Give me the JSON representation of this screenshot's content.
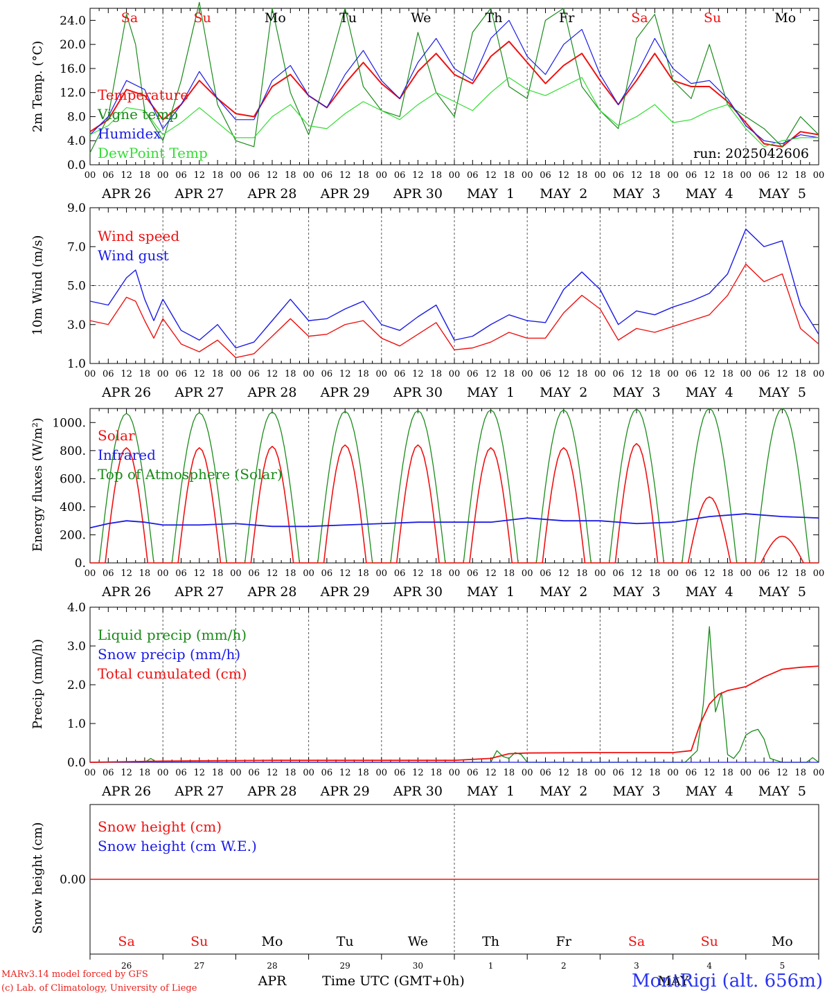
{
  "run_label": "run: 2025042606",
  "station": "MontRigi (alt. 656m)",
  "footer": {
    "line1": "MARv3.14 model forced by GFS",
    "line2": "(c) Lab. of Climatology, University of Liege",
    "time_axis_label": "Time UTC (GMT+0h)",
    "month_label": "APR",
    "month_label_2": "MAY"
  },
  "colors": {
    "red": "#ee1111",
    "dark_green": "#1a8a1a",
    "blue": "#1a1ae6",
    "light_green": "#33dd33",
    "grid": "#777777"
  },
  "days": [
    "Sa",
    "Su",
    "Mo",
    "Tu",
    "We",
    "Th",
    "Fr",
    "Sa",
    "Su",
    "Mo"
  ],
  "day_colors": [
    "red",
    "red",
    "black",
    "black",
    "black",
    "black",
    "black",
    "red",
    "red",
    "black"
  ],
  "date_labels": [
    "APR 26",
    "APR 27",
    "APR 28",
    "APR 29",
    "APR 30",
    "MAY  1",
    "MAY  2",
    "MAY  3",
    "MAY  4",
    "MAY  5"
  ],
  "hour_labels": [
    "00",
    "06",
    "12",
    "18"
  ],
  "bottom_day_numbers": [
    "26",
    "27",
    "28",
    "29",
    "30",
    "1",
    "2",
    "3",
    "4",
    "5"
  ],
  "chart_data": [
    {
      "type": "line",
      "ylabel": "2m Temp. (°C)",
      "ylim": [
        0,
        26
      ],
      "yticks": [
        "0.0",
        "4.0",
        "8.0",
        "12.0",
        "16.0",
        "20.0",
        "24.0"
      ],
      "x_unit": "hours since APR 26 00 UTC",
      "series": [
        {
          "name": "Temperature",
          "color": "red",
          "x": [
            0,
            6,
            12,
            18,
            24,
            30,
            36,
            42,
            48,
            54,
            60,
            66,
            72,
            78,
            84,
            90,
            96,
            102,
            108,
            114,
            120,
            126,
            132,
            138,
            144,
            150,
            156,
            162,
            168,
            174,
            180,
            186,
            192,
            198,
            204,
            210,
            216,
            222,
            228,
            234,
            240
          ],
          "y": [
            5.5,
            7.5,
            12.5,
            11.5,
            7.5,
            10,
            14,
            11,
            8.5,
            8,
            13,
            15,
            11.5,
            9.5,
            13.5,
            17,
            13.5,
            11,
            15.5,
            18.5,
            15,
            13.5,
            18,
            20.5,
            17,
            13.5,
            16.5,
            18.5,
            14,
            10,
            14,
            18.5,
            14,
            13,
            13,
            10.5,
            7,
            3.5,
            3,
            5.5,
            5
          ]
        },
        {
          "name": "Vigne temp",
          "color": "dark_green",
          "x": [
            0,
            6,
            12,
            15,
            18,
            24,
            30,
            36,
            42,
            48,
            54,
            60,
            66,
            72,
            78,
            84,
            90,
            96,
            102,
            108,
            114,
            120,
            126,
            132,
            138,
            144,
            150,
            156,
            162,
            168,
            174,
            180,
            186,
            192,
            198,
            204,
            210,
            216,
            222,
            228,
            234,
            240
          ],
          "y": [
            2,
            8,
            25,
            20,
            9,
            4,
            14,
            27,
            10,
            4,
            3,
            26,
            12,
            5,
            15,
            26,
            13,
            9,
            8,
            22,
            12,
            8,
            22,
            26,
            13,
            11,
            24,
            26,
            13,
            9,
            6,
            21,
            25,
            14,
            11,
            20,
            10,
            8,
            6,
            3,
            8,
            5
          ]
        },
        {
          "name": "Humidex",
          "color": "blue",
          "x": [
            0,
            6,
            12,
            18,
            24,
            30,
            36,
            42,
            48,
            54,
            60,
            66,
            72,
            78,
            84,
            90,
            96,
            102,
            108,
            114,
            120,
            126,
            132,
            138,
            144,
            150,
            156,
            162,
            168,
            174,
            180,
            186,
            192,
            198,
            204,
            210,
            216,
            222,
            228,
            234,
            240
          ],
          "y": [
            5,
            8,
            14,
            12.5,
            6,
            10,
            15.5,
            11,
            7.5,
            7.5,
            14,
            16.5,
            11.5,
            9.5,
            15,
            19,
            14,
            11,
            17,
            21,
            16,
            14,
            21,
            24,
            18,
            15,
            20,
            22.5,
            15,
            10,
            15,
            21,
            16,
            13.5,
            14,
            11,
            6.5,
            4,
            3.5,
            5,
            4.5
          ]
        },
        {
          "name": "DewPoint Temp",
          "color": "light_green",
          "x": [
            0,
            6,
            12,
            18,
            24,
            30,
            36,
            42,
            48,
            54,
            60,
            66,
            72,
            78,
            84,
            90,
            96,
            102,
            108,
            114,
            120,
            126,
            132,
            138,
            144,
            150,
            156,
            162,
            168,
            174,
            180,
            186,
            192,
            198,
            204,
            210,
            216,
            222,
            228,
            234,
            240
          ],
          "y": [
            5,
            6.5,
            9.5,
            9,
            5,
            7,
            9.5,
            7,
            4.5,
            4.5,
            8,
            10,
            6.5,
            6,
            8.5,
            10.5,
            9,
            7.5,
            10,
            12,
            10.5,
            9,
            12,
            14.5,
            12.5,
            11.5,
            13,
            14.5,
            9,
            6.5,
            8,
            10,
            7,
            7.5,
            9,
            10,
            6,
            3,
            4,
            4.5,
            4.5
          ]
        }
      ]
    },
    {
      "type": "line",
      "ylabel": "10m Wind (m/s)",
      "ylim": [
        1,
        9
      ],
      "yticks": [
        "1.0",
        "3.0",
        "5.0",
        "7.0",
        "9.0"
      ],
      "series": [
        {
          "name": "Wind speed",
          "color": "red",
          "x": [
            0,
            6,
            12,
            15,
            18,
            21,
            24,
            30,
            36,
            42,
            48,
            54,
            60,
            66,
            72,
            78,
            84,
            90,
            96,
            102,
            108,
            114,
            120,
            126,
            132,
            138,
            144,
            150,
            156,
            162,
            168,
            174,
            180,
            186,
            192,
            198,
            204,
            210,
            216,
            222,
            228,
            234,
            240
          ],
          "y": [
            3.2,
            3,
            4.4,
            4.2,
            3.2,
            2.3,
            3.3,
            2,
            1.6,
            2.2,
            1.3,
            1.5,
            2.4,
            3.3,
            2.4,
            2.5,
            3,
            3.2,
            2.3,
            1.9,
            2.5,
            3.1,
            1.7,
            1.8,
            2.1,
            2.6,
            2.3,
            2.3,
            3.6,
            4.5,
            3.8,
            2.2,
            2.8,
            2.6,
            2.9,
            3.2,
            3.5,
            4.5,
            6.1,
            5.2,
            5.6,
            2.8,
            2
          ]
        },
        {
          "name": "Wind gust",
          "color": "blue",
          "x": [
            0,
            6,
            12,
            15,
            18,
            21,
            24,
            30,
            36,
            42,
            48,
            54,
            60,
            66,
            72,
            78,
            84,
            90,
            96,
            102,
            108,
            114,
            120,
            126,
            132,
            138,
            144,
            150,
            156,
            162,
            168,
            174,
            180,
            186,
            192,
            198,
            204,
            210,
            216,
            222,
            228,
            234,
            240
          ],
          "y": [
            4.2,
            4,
            5.4,
            5.8,
            4.3,
            3.2,
            4.3,
            2.7,
            2.2,
            3,
            1.8,
            2.1,
            3.2,
            4.3,
            3.2,
            3.3,
            3.8,
            4.2,
            3,
            2.7,
            3.4,
            4,
            2.2,
            2.4,
            3,
            3.5,
            3.2,
            3.1,
            4.8,
            5.7,
            4.8,
            3,
            3.7,
            3.5,
            3.9,
            4.2,
            4.6,
            5.6,
            7.9,
            7,
            7.3,
            4,
            2.5
          ]
        }
      ]
    },
    {
      "type": "line",
      "ylabel": "Energy fluxes (W/m²)",
      "ylim": [
        0,
        1100
      ],
      "yticks": [
        "0.",
        "200.",
        "400.",
        "600.",
        "800.",
        "1000."
      ],
      "series": [
        {
          "name": "Solar",
          "color": "red",
          "peaks": [
            820,
            820,
            830,
            840,
            840,
            820,
            820,
            850,
            470,
            190
          ]
        },
        {
          "name": "Infrared",
          "color": "blue",
          "x": [
            0,
            6,
            12,
            18,
            24,
            36,
            48,
            60,
            72,
            84,
            96,
            108,
            120,
            132,
            144,
            156,
            168,
            180,
            192,
            204,
            216,
            228,
            240
          ],
          "y": [
            250,
            280,
            300,
            290,
            270,
            270,
            280,
            260,
            260,
            270,
            280,
            290,
            290,
            290,
            320,
            300,
            300,
            280,
            290,
            330,
            350,
            330,
            320
          ]
        },
        {
          "name": "Top of Atmosphere (Solar)",
          "color": "dark_green",
          "peaks": [
            1065,
            1070,
            1075,
            1080,
            1085,
            1090,
            1090,
            1095,
            1100,
            1100
          ]
        }
      ]
    },
    {
      "type": "line",
      "ylabel": "Precip (mm/h)",
      "ylim": [
        0,
        4
      ],
      "yticks": [
        "0.0",
        "1.0",
        "2.0",
        "3.0",
        "4.0"
      ],
      "series": [
        {
          "name": "Liquid precip (mm/h)",
          "color": "dark_green",
          "x": [
            0,
            18,
            20,
            22,
            24,
            60,
            120,
            132,
            134,
            136,
            138,
            140,
            142,
            144,
            196,
            200,
            202,
            204,
            206,
            208,
            210,
            212,
            214,
            216,
            218,
            220,
            222,
            224,
            226,
            228,
            232,
            236,
            238,
            240
          ],
          "y": [
            0,
            0,
            0.1,
            0,
            0,
            0,
            0,
            0,
            0.3,
            0.15,
            0.1,
            0.25,
            0.2,
            0,
            0,
            0.3,
            1.5,
            3.5,
            1.3,
            1.8,
            0.2,
            0.1,
            0.3,
            0.7,
            0.8,
            0.85,
            0.6,
            0.1,
            0.05,
            0,
            0,
            0,
            0.12,
            0
          ]
        },
        {
          "name": "Snow precip (mm/h)",
          "color": "blue",
          "x": [
            0,
            240
          ],
          "y": [
            0,
            0
          ]
        },
        {
          "name": "Total cumulated (cm)",
          "color": "red",
          "x": [
            0,
            24,
            60,
            120,
            132,
            138,
            144,
            168,
            192,
            198,
            201,
            204,
            207,
            210,
            216,
            222,
            228,
            234,
            240
          ],
          "y": [
            0,
            0.03,
            0.05,
            0.05,
            0.1,
            0.22,
            0.24,
            0.25,
            0.25,
            0.3,
            1,
            1.5,
            1.75,
            1.85,
            1.95,
            2.2,
            2.4,
            2.45,
            2.48
          ]
        }
      ]
    },
    {
      "type": "line",
      "ylabel": "Snow height (cm)",
      "yticks": [
        "0.00"
      ],
      "series": [
        {
          "name": "Snow height (cm)",
          "color": "red",
          "x": [
            0,
            240
          ],
          "y": [
            0,
            0
          ]
        },
        {
          "name": "Snow height (cm W.E.)",
          "color": "blue",
          "x": [],
          "y": []
        }
      ]
    }
  ]
}
